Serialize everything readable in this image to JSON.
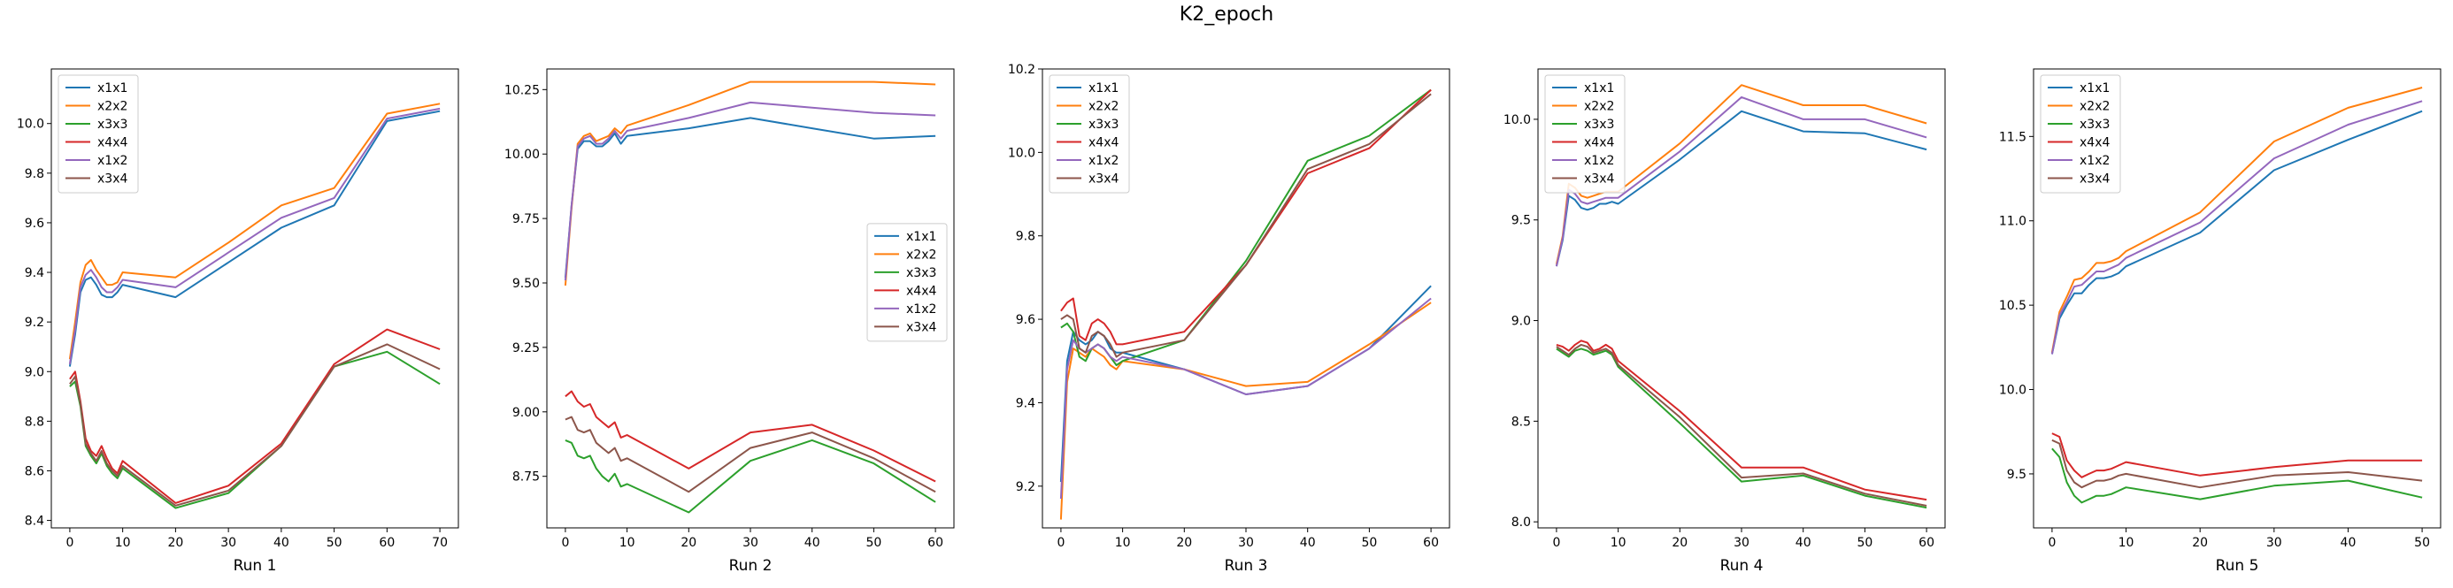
{
  "suptitle": "K2_epoch",
  "colors": {
    "x1x1": "#1f77b4",
    "x2x2": "#ff7f0e",
    "x3x3": "#2ca02c",
    "x4x4": "#d62728",
    "x1x2": "#9467bd",
    "x3x4": "#8c564b"
  },
  "chart_data": [
    {
      "type": "line",
      "xlabel": "Run 1",
      "ylabel": "",
      "xlim": [
        -3.5,
        73.5
      ],
      "ylim": [
        8.37,
        10.22
      ],
      "xticks": [
        0,
        10,
        20,
        30,
        40,
        50,
        60,
        70
      ],
      "yticks": [
        8.4,
        8.6,
        8.8,
        9.0,
        9.2,
        9.4,
        9.6,
        9.8,
        10.0
      ],
      "ytick_labels": [
        "8.4",
        "8.6",
        "8.8",
        "9.0",
        "9.2",
        "9.4",
        "9.6",
        "9.8",
        "10.0"
      ],
      "legend_loc": "upper left",
      "x": [
        0,
        1,
        2,
        3,
        4,
        5,
        6,
        7,
        8,
        9,
        10,
        20,
        30,
        40,
        50,
        60,
        70
      ],
      "series": [
        {
          "name": "x1x1",
          "values": [
            9.02,
            9.15,
            9.32,
            9.37,
            9.38,
            9.35,
            9.31,
            9.3,
            9.3,
            9.32,
            9.35,
            9.3,
            9.44,
            9.58,
            9.67,
            10.01,
            10.05
          ]
        },
        {
          "name": "x2x2",
          "values": [
            9.05,
            9.2,
            9.36,
            9.43,
            9.45,
            9.41,
            9.38,
            9.35,
            9.35,
            9.36,
            9.4,
            9.38,
            9.52,
            9.67,
            9.74,
            10.04,
            10.08
          ]
        },
        {
          "name": "x3x3",
          "values": [
            8.94,
            8.96,
            8.86,
            8.7,
            8.66,
            8.63,
            8.67,
            8.62,
            8.59,
            8.57,
            8.61,
            8.45,
            8.51,
            8.7,
            9.02,
            9.08,
            8.95
          ]
        },
        {
          "name": "x4x4",
          "values": [
            8.97,
            9.0,
            8.88,
            8.73,
            8.68,
            8.66,
            8.7,
            8.65,
            8.61,
            8.59,
            8.64,
            8.47,
            8.54,
            8.71,
            9.03,
            9.17,
            9.09
          ]
        },
        {
          "name": "x1x2",
          "values": [
            9.03,
            9.17,
            9.34,
            9.39,
            9.41,
            9.38,
            9.34,
            9.32,
            9.32,
            9.34,
            9.37,
            9.34,
            9.48,
            9.62,
            9.7,
            10.02,
            10.06
          ]
        },
        {
          "name": "x3x4",
          "values": [
            8.95,
            8.98,
            8.87,
            8.71,
            8.67,
            8.64,
            8.68,
            8.63,
            8.6,
            8.58,
            8.62,
            8.46,
            8.52,
            8.7,
            9.02,
            9.11,
            9.01
          ]
        }
      ]
    },
    {
      "type": "line",
      "xlabel": "Run 2",
      "ylabel": "",
      "xlim": [
        -3,
        63
      ],
      "ylim": [
        8.55,
        10.33
      ],
      "xticks": [
        0,
        10,
        20,
        30,
        40,
        50,
        60
      ],
      "yticks": [
        8.75,
        9.0,
        9.25,
        9.5,
        9.75,
        10.0,
        10.25
      ],
      "ytick_labels": [
        "8.75",
        "9.00",
        "9.25",
        "9.50",
        "9.75",
        "10.00",
        "10.25"
      ],
      "legend_loc": "center right",
      "x": [
        0,
        1,
        2,
        3,
        4,
        5,
        6,
        7,
        8,
        9,
        10,
        20,
        30,
        40,
        50,
        60
      ],
      "series": [
        {
          "name": "x1x1",
          "values": [
            9.52,
            9.8,
            10.02,
            10.05,
            10.05,
            10.03,
            10.03,
            10.05,
            10.08,
            10.04,
            10.07,
            10.1,
            10.14,
            10.1,
            10.06,
            10.07
          ]
        },
        {
          "name": "x2x2",
          "values": [
            9.49,
            9.79,
            10.04,
            10.07,
            10.08,
            10.05,
            10.06,
            10.07,
            10.1,
            10.08,
            10.11,
            10.19,
            10.28,
            10.28,
            10.28,
            10.27
          ]
        },
        {
          "name": "x3x3",
          "values": [
            8.89,
            8.88,
            8.83,
            8.82,
            8.83,
            8.78,
            8.75,
            8.73,
            8.76,
            8.71,
            8.72,
            8.61,
            8.81,
            8.89,
            8.8,
            8.65
          ]
        },
        {
          "name": "x4x4",
          "values": [
            9.06,
            9.08,
            9.04,
            9.02,
            9.03,
            8.98,
            8.96,
            8.94,
            8.96,
            8.9,
            8.91,
            8.78,
            8.92,
            8.95,
            8.85,
            8.73
          ]
        },
        {
          "name": "x1x2",
          "values": [
            9.51,
            9.8,
            10.03,
            10.06,
            10.07,
            10.04,
            10.04,
            10.06,
            10.09,
            10.06,
            10.09,
            10.14,
            10.2,
            10.18,
            10.16,
            10.15
          ]
        },
        {
          "name": "x3x4",
          "values": [
            8.97,
            8.98,
            8.93,
            8.92,
            8.93,
            8.88,
            8.86,
            8.84,
            8.86,
            8.81,
            8.82,
            8.69,
            8.86,
            8.92,
            8.82,
            8.69
          ]
        }
      ]
    },
    {
      "type": "line",
      "xlabel": "Run 3",
      "ylabel": "",
      "xlim": [
        -3,
        63
      ],
      "ylim": [
        9.1,
        10.2
      ],
      "xticks": [
        0,
        10,
        20,
        30,
        40,
        50,
        60
      ],
      "yticks": [
        9.2,
        9.4,
        9.6,
        9.8,
        10.0,
        10.2
      ],
      "ytick_labels": [
        "9.2",
        "9.4",
        "9.6",
        "9.8",
        "10.0",
        "10.2"
      ],
      "legend_loc": "upper left",
      "x": [
        0,
        1,
        2,
        3,
        4,
        5,
        6,
        7,
        8,
        9,
        10,
        20,
        30,
        40,
        50,
        60
      ],
      "series": [
        {
          "name": "x1x1",
          "values": [
            9.21,
            9.5,
            9.57,
            9.55,
            9.54,
            9.55,
            9.57,
            9.56,
            9.53,
            9.52,
            9.52,
            9.48,
            9.42,
            9.44,
            9.53,
            9.68
          ]
        },
        {
          "name": "x2x2",
          "values": [
            9.12,
            9.45,
            9.53,
            9.52,
            9.51,
            9.53,
            9.52,
            9.51,
            9.49,
            9.48,
            9.5,
            9.48,
            9.44,
            9.45,
            9.54,
            9.64
          ]
        },
        {
          "name": "x3x3",
          "values": [
            9.58,
            9.59,
            9.57,
            9.51,
            9.5,
            9.53,
            9.54,
            9.53,
            9.51,
            9.49,
            9.5,
            9.55,
            9.74,
            9.98,
            10.04,
            10.15
          ]
        },
        {
          "name": "x4x4",
          "values": [
            9.62,
            9.64,
            9.65,
            9.56,
            9.55,
            9.59,
            9.6,
            9.59,
            9.57,
            9.54,
            9.54,
            9.57,
            9.73,
            9.95,
            10.01,
            10.15
          ]
        },
        {
          "name": "x1x2",
          "values": [
            9.17,
            9.48,
            9.55,
            9.53,
            9.52,
            9.53,
            9.54,
            9.53,
            9.51,
            9.5,
            9.51,
            9.48,
            9.42,
            9.44,
            9.53,
            9.65
          ]
        },
        {
          "name": "x3x4",
          "values": [
            9.6,
            9.61,
            9.6,
            9.53,
            9.52,
            9.56,
            9.57,
            9.56,
            9.54,
            9.51,
            9.52,
            9.55,
            9.73,
            9.96,
            10.02,
            10.14
          ]
        }
      ]
    },
    {
      "type": "line",
      "xlabel": "Run 4",
      "ylabel": "",
      "xlim": [
        -3,
        63
      ],
      "ylim": [
        7.97,
        10.25
      ],
      "xticks": [
        0,
        10,
        20,
        30,
        40,
        50,
        60
      ],
      "yticks": [
        8.0,
        8.5,
        9.0,
        9.5,
        10.0
      ],
      "ytick_labels": [
        "8.0",
        "8.5",
        "9.0",
        "9.5",
        "10.0"
      ],
      "legend_loc": "upper left",
      "x": [
        0,
        1,
        2,
        3,
        4,
        5,
        6,
        7,
        8,
        9,
        10,
        20,
        30,
        40,
        50,
        60
      ],
      "series": [
        {
          "name": "x1x1",
          "values": [
            9.27,
            9.4,
            9.62,
            9.6,
            9.56,
            9.55,
            9.56,
            9.58,
            9.58,
            9.59,
            9.58,
            9.8,
            10.04,
            9.94,
            9.93,
            9.85
          ]
        },
        {
          "name": "x2x2",
          "values": [
            9.28,
            9.42,
            9.68,
            9.66,
            9.62,
            9.61,
            9.62,
            9.63,
            9.64,
            9.64,
            9.64,
            9.88,
            10.17,
            10.07,
            10.07,
            9.98
          ]
        },
        {
          "name": "x3x3",
          "values": [
            8.86,
            8.84,
            8.82,
            8.85,
            8.86,
            8.85,
            8.83,
            8.84,
            8.85,
            8.83,
            8.77,
            8.49,
            8.2,
            8.23,
            8.13,
            8.07
          ]
        },
        {
          "name": "x4x4",
          "values": [
            8.88,
            8.87,
            8.85,
            8.88,
            8.9,
            8.89,
            8.85,
            8.86,
            8.88,
            8.86,
            8.8,
            8.55,
            8.27,
            8.27,
            8.16,
            8.11
          ]
        },
        {
          "name": "x1x2",
          "values": [
            9.27,
            9.41,
            9.65,
            9.63,
            9.59,
            9.58,
            9.59,
            9.6,
            9.61,
            9.61,
            9.61,
            9.84,
            10.11,
            10.0,
            10.0,
            9.91
          ]
        },
        {
          "name": "x3x4",
          "values": [
            8.87,
            8.85,
            8.83,
            8.86,
            8.88,
            8.87,
            8.84,
            8.85,
            8.86,
            8.84,
            8.78,
            8.52,
            8.22,
            8.24,
            8.14,
            8.08
          ]
        }
      ]
    },
    {
      "type": "line",
      "xlabel": "Run 5",
      "ylabel": "",
      "xlim": [
        -2.5,
        52.5
      ],
      "ylim": [
        9.18,
        11.9
      ],
      "xticks": [
        0,
        10,
        20,
        30,
        40,
        50
      ],
      "yticks": [
        9.5,
        10.0,
        10.5,
        11.0,
        11.5
      ],
      "ytick_labels": [
        "9.5",
        "10.0",
        "10.5",
        "11.0",
        "11.5"
      ],
      "legend_loc": "upper left",
      "x": [
        0,
        1,
        2,
        3,
        4,
        5,
        6,
        7,
        8,
        9,
        10,
        20,
        30,
        40,
        50
      ],
      "series": [
        {
          "name": "x1x1",
          "values": [
            10.21,
            10.42,
            10.5,
            10.57,
            10.57,
            10.62,
            10.66,
            10.66,
            10.67,
            10.69,
            10.73,
            10.93,
            11.3,
            11.48,
            11.65
          ]
        },
        {
          "name": "x2x2",
          "values": [
            10.22,
            10.46,
            10.55,
            10.65,
            10.66,
            10.7,
            10.75,
            10.75,
            10.76,
            10.78,
            10.82,
            11.05,
            11.47,
            11.67,
            11.79
          ]
        },
        {
          "name": "x3x3",
          "values": [
            9.65,
            9.6,
            9.45,
            9.37,
            9.33,
            9.35,
            9.37,
            9.37,
            9.38,
            9.4,
            9.42,
            9.35,
            9.43,
            9.46,
            9.36
          ]
        },
        {
          "name": "x4x4",
          "values": [
            9.74,
            9.72,
            9.58,
            9.52,
            9.48,
            9.5,
            9.52,
            9.52,
            9.53,
            9.55,
            9.57,
            9.49,
            9.54,
            9.58,
            9.58
          ]
        },
        {
          "name": "x1x2",
          "values": [
            10.21,
            10.44,
            10.52,
            10.61,
            10.62,
            10.66,
            10.7,
            10.7,
            10.72,
            10.74,
            10.78,
            10.99,
            11.37,
            11.57,
            11.71
          ]
        },
        {
          "name": "x3x4",
          "values": [
            9.7,
            9.68,
            9.52,
            9.45,
            9.42,
            9.44,
            9.46,
            9.46,
            9.47,
            9.49,
            9.5,
            9.42,
            9.49,
            9.51,
            9.46
          ]
        }
      ]
    }
  ]
}
